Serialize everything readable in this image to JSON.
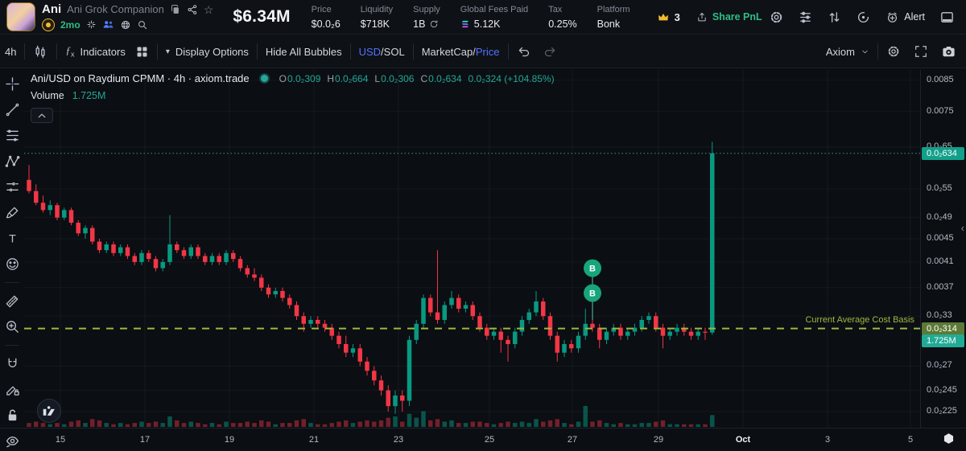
{
  "header": {
    "token": {
      "symbol": "Ani",
      "name": "Ani Grok Companion",
      "age": "2mo"
    },
    "market_cap": "$6.34M",
    "stats": [
      {
        "label": "Price",
        "value": "$0.0₂6"
      },
      {
        "label": "Liquidity",
        "value": "$718K"
      },
      {
        "label": "Supply",
        "value": "1B"
      },
      {
        "label": "Global Fees Paid",
        "value": "5.12K"
      },
      {
        "label": "Tax",
        "value": "0.25%"
      },
      {
        "label": "Platform",
        "value": "Bonk"
      }
    ],
    "crown_count": "3",
    "share_pnl": "Share PnL",
    "alert_label": "Alert"
  },
  "toolbar": {
    "timeframe": "4h",
    "indicators_label": "Indicators",
    "display_options": "Display Options",
    "hide_bubbles": "Hide All Bubbles",
    "currency_toggle": {
      "usd": "USD",
      "sep": "/",
      "sol": "SOL"
    },
    "metric_toggle": {
      "marketcap": "MarketCap",
      "sep": "/",
      "price": "Price"
    },
    "provider": "Axiom"
  },
  "chart": {
    "legend_title": "Ani/USD on Raydium CPMM · 4h · axiom.trade",
    "ohlc_items": [
      {
        "k": "O",
        "v": "0.0₂309"
      },
      {
        "k": "H",
        "v": "0.0₂664"
      },
      {
        "k": "L",
        "v": "0.0₂306"
      },
      {
        "k": "C",
        "v": "0.0₂634"
      }
    ],
    "change": "0.0₂324 (+104.85%)",
    "volume_label": "Volume",
    "volume_value": "1.725M",
    "cost_basis_label": "Current Average Cost Basis",
    "price_badge": "0.0₂634",
    "cost_badge": "0.0₂314",
    "volume_badge": "1.725M",
    "bubbles": [
      "B",
      "B"
    ]
  },
  "left_toolbar_tools": [
    "crosshair",
    "trend-line",
    "fib-retracement",
    "xabcd-pattern",
    "projection",
    "brush",
    "text",
    "emoji",
    "ruler",
    "zoom-in",
    "magnet",
    "drawing-mode-lock",
    "lock-all-drawings",
    "hide-all-drawings"
  ],
  "chart_data": {
    "type": "candlestick",
    "symbol": "Ani/USD",
    "venue": "Raydium CPMM",
    "interval": "4h",
    "scale": "log",
    "price_unit": 0.0001,
    "current_price": 63.4,
    "cost_basis": 31.4,
    "last_volume": "1.725M",
    "y_ticks": [
      [
        "0.0085",
        85
      ],
      [
        "0.0075",
        75
      ],
      [
        "0.0₂65",
        65
      ],
      [
        "0.0₂55",
        55
      ],
      [
        "0.0₂49",
        49
      ],
      [
        "0.0045",
        45
      ],
      [
        "0.0041",
        41
      ],
      [
        "0.0037",
        37
      ],
      [
        "0.0₂33",
        33
      ],
      [
        "0.0₂27",
        27
      ],
      [
        "0.0₂245",
        24.5
      ],
      [
        "0.0₂225",
        22.5
      ]
    ],
    "x_ticks": [
      [
        "15",
        75,
        0
      ],
      [
        "17",
        180,
        0
      ],
      [
        "19",
        285,
        0
      ],
      [
        "21",
        390,
        0
      ],
      [
        "23",
        495,
        0
      ],
      [
        "25",
        608,
        0
      ],
      [
        "27",
        711,
        0
      ],
      [
        "29",
        818,
        0
      ],
      [
        "Oct",
        923,
        1
      ],
      [
        "3",
        1028,
        0
      ],
      [
        "5",
        1131,
        0
      ]
    ],
    "bubbles": {
      "candle": 80,
      "prices": [
        40,
        36.2
      ]
    },
    "candles": [
      [
        57,
        60.5,
        54,
        54.5
      ],
      [
        54.5,
        56,
        51.5,
        52
      ],
      [
        52,
        53.5,
        50,
        50.5
      ],
      [
        50.5,
        52.5,
        49.5,
        51.5
      ],
      [
        51.5,
        52,
        48.5,
        49
      ],
      [
        49,
        51,
        48.5,
        50.5
      ],
      [
        50.5,
        51,
        47.5,
        48
      ],
      [
        48,
        48.5,
        45.5,
        46
      ],
      [
        46,
        47.5,
        45,
        47
      ],
      [
        47,
        47.5,
        44,
        44.5
      ],
      [
        44.5,
        45,
        42.5,
        43
      ],
      [
        43,
        44.5,
        42.5,
        44
      ],
      [
        44,
        44.5,
        42,
        42.5
      ],
      [
        42.5,
        44,
        42,
        43.5
      ],
      [
        43.5,
        44,
        41.5,
        42
      ],
      [
        42,
        42.5,
        40.5,
        41
      ],
      [
        41,
        43,
        40.5,
        42.5
      ],
      [
        42.5,
        43,
        41,
        41.5
      ],
      [
        41.5,
        42,
        39.5,
        40
      ],
      [
        40,
        41.5,
        39.5,
        41
      ],
      [
        41,
        49.5,
        40.5,
        44
      ],
      [
        44,
        44.5,
        42.5,
        43
      ],
      [
        43,
        43.5,
        41.5,
        42
      ],
      [
        42,
        44,
        41.5,
        43.5
      ],
      [
        43.5,
        44,
        41.5,
        42
      ],
      [
        42,
        42.5,
        40.5,
        41
      ],
      [
        41,
        42.5,
        40.5,
        42
      ],
      [
        42,
        42.5,
        40.5,
        41
      ],
      [
        41,
        43,
        40.5,
        42.5
      ],
      [
        42.5,
        43,
        41,
        41.5
      ],
      [
        41.5,
        42,
        39.5,
        40
      ],
      [
        40,
        40.5,
        38.5,
        39
      ],
      [
        39,
        40,
        38,
        38.5
      ],
      [
        38.5,
        39,
        36.5,
        37
      ],
      [
        37,
        37.5,
        35.5,
        36
      ],
      [
        36,
        37,
        35.5,
        36.5
      ],
      [
        36.5,
        37,
        35,
        35.5
      ],
      [
        35.5,
        36,
        34,
        34.5
      ],
      [
        34.5,
        35,
        32.5,
        33
      ],
      [
        33,
        33.5,
        31,
        32
      ],
      [
        32,
        33,
        31.5,
        32.5
      ],
      [
        32.5,
        33,
        31.5,
        32
      ],
      [
        32,
        32.5,
        31,
        31.5
      ],
      [
        31.5,
        32,
        30,
        30.5
      ],
      [
        30.5,
        31,
        29,
        29.5
      ],
      [
        29.5,
        30.5,
        28,
        28.5
      ],
      [
        28.5,
        29.5,
        28,
        29
      ],
      [
        29,
        29.5,
        27,
        27.5
      ],
      [
        27.5,
        28,
        26,
        26.5
      ],
      [
        26.5,
        27,
        25,
        25.5
      ],
      [
        25.5,
        26,
        24,
        24.5
      ],
      [
        24.5,
        25,
        22.5,
        23
      ],
      [
        23,
        24.5,
        22.3,
        24
      ],
      [
        24,
        24.5,
        22.5,
        23.5
      ],
      [
        23.5,
        30.5,
        23,
        30
      ],
      [
        30,
        32.5,
        29.5,
        32
      ],
      [
        32,
        36,
        31.5,
        35.5
      ],
      [
        35.5,
        36,
        33,
        33.5
      ],
      [
        33.5,
        43,
        32,
        32.5
      ],
      [
        32.5,
        35,
        32,
        34.5
      ],
      [
        34.5,
        36.5,
        34,
        35.5
      ],
      [
        35.5,
        36,
        33.5,
        34
      ],
      [
        34,
        35,
        33.5,
        34.5
      ],
      [
        34.5,
        35,
        32.5,
        33
      ],
      [
        33,
        33.5,
        31,
        31.5
      ],
      [
        31.5,
        32,
        30,
        30.5
      ],
      [
        30.5,
        31.5,
        30,
        31
      ],
      [
        31,
        31.5,
        28.5,
        30
      ],
      [
        30,
        30.5,
        27.5,
        29.5
      ],
      [
        29.5,
        31.5,
        29,
        31
      ],
      [
        31,
        33,
        30.5,
        32.5
      ],
      [
        32.5,
        34,
        32,
        33.5
      ],
      [
        33.5,
        36.5,
        33,
        35
      ],
      [
        35,
        35.5,
        32.5,
        33
      ],
      [
        33,
        33.5,
        30,
        30.5
      ],
      [
        30.5,
        31,
        27.5,
        28.5
      ],
      [
        28.5,
        30,
        28,
        29.5
      ],
      [
        29.5,
        30,
        28.5,
        29
      ],
      [
        29,
        31,
        28.5,
        30.5
      ],
      [
        30.5,
        34,
        30,
        32
      ],
      [
        32,
        32.5,
        31,
        31.5
      ],
      [
        31.5,
        32,
        29,
        30
      ],
      [
        30,
        31.5,
        29.5,
        31
      ],
      [
        31,
        32,
        30.5,
        31.5
      ],
      [
        31.5,
        32,
        30,
        30.5
      ],
      [
        30.5,
        31.5,
        30,
        31
      ],
      [
        31,
        32,
        30.5,
        31.5
      ],
      [
        31.5,
        33,
        31,
        32.5
      ],
      [
        32.5,
        33.5,
        32,
        33
      ],
      [
        33,
        33.5,
        31,
        31.5
      ],
      [
        31.5,
        32,
        29,
        30.5
      ],
      [
        30.5,
        31.5,
        30,
        31
      ],
      [
        31,
        32,
        30.5,
        31.5
      ],
      [
        31.5,
        32,
        30.5,
        31
      ],
      [
        31,
        31.5,
        30,
        30.5
      ],
      [
        30.5,
        31.5,
        30,
        31
      ],
      [
        31,
        31.5,
        30,
        30.9
      ],
      [
        30.9,
        66.4,
        30.6,
        63.4
      ]
    ],
    "volumes": [
      3,
      4,
      3,
      2,
      3,
      2,
      4,
      5,
      3,
      6,
      5,
      3,
      2,
      3,
      2,
      3,
      4,
      3,
      4,
      3,
      8,
      5,
      3,
      4,
      3,
      2,
      3,
      2,
      4,
      3,
      3,
      4,
      3,
      5,
      4,
      2,
      3,
      3,
      5,
      6,
      3,
      2,
      2,
      3,
      4,
      5,
      3,
      4,
      5,
      4,
      5,
      7,
      8,
      4,
      10,
      7,
      12,
      5,
      6,
      4,
      5,
      3,
      3,
      4,
      4,
      3,
      2,
      3,
      4,
      3,
      4,
      3,
      6,
      4,
      5,
      6,
      3,
      2,
      4,
      16,
      4,
      5,
      3,
      2,
      3,
      2,
      2,
      3,
      3,
      4,
      5,
      2,
      2,
      2,
      2,
      2,
      2,
      9
    ]
  },
  "colors": {
    "up": "#089981",
    "down": "#f23645",
    "vol_up": "rgba(8,153,129,0.5)",
    "vol_down": "rgba(242,54,69,0.45)",
    "grid": "rgba(255,255,255,0.045)",
    "price_line": "#2f9d8c",
    "price_badge_bg": "#12a08a",
    "cost_line": "#9db83f",
    "cost_badge_bg": "#5c7a36",
    "volume_badge_bg": "#22ab94",
    "bubble": "#17a57c",
    "bubble_line": "#4fa796",
    "accent_blue": "#5472ff",
    "green": "#2ebd85",
    "gold": "#f3ba2f"
  }
}
